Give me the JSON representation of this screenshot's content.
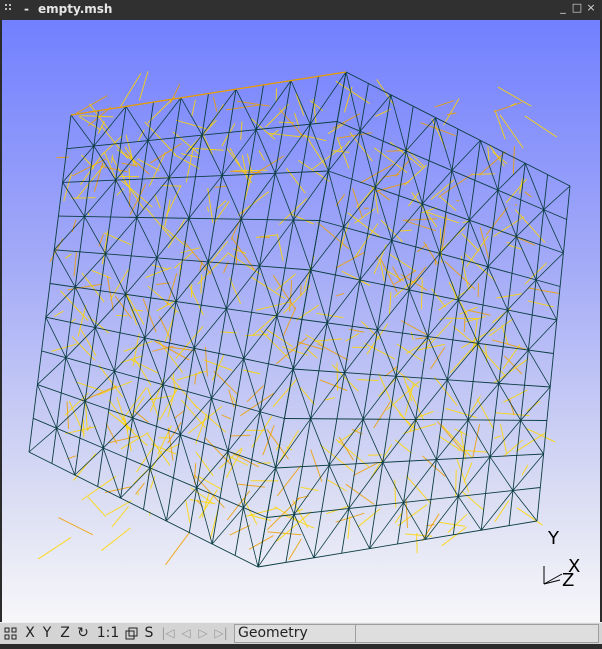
{
  "window": {
    "title": "empty.msh",
    "minimize": "_",
    "maximize": "□",
    "close": "×"
  },
  "statusbar": {
    "buttons": [
      {
        "id": "layout",
        "label": "",
        "icon": "grid-icon"
      },
      {
        "id": "x",
        "label": "X"
      },
      {
        "id": "y",
        "label": "Y"
      },
      {
        "id": "z",
        "label": "Z"
      },
      {
        "id": "rotate",
        "label": "↻",
        "icon": "rotate-icon"
      },
      {
        "id": "scale",
        "label": "1:1"
      },
      {
        "id": "ortho",
        "label": "",
        "icon": "cube-icon"
      },
      {
        "id": "s",
        "label": "S"
      },
      {
        "id": "first",
        "label": "|◁",
        "icon": "first-icon"
      },
      {
        "id": "prev",
        "label": "◁",
        "icon": "prev-icon"
      },
      {
        "id": "play",
        "label": "▷",
        "icon": "play-icon"
      },
      {
        "id": "last",
        "label": "▷|",
        "icon": "last-icon"
      }
    ],
    "module": "Geometry",
    "message": ""
  },
  "axes": {
    "y": "Y",
    "x": "X",
    "z": "Z"
  },
  "colors": {
    "mesh_front": "#0b3d43",
    "mesh_inner": "#ffd700",
    "mesh_inner2": "#f0a000",
    "bg_top": "#7280ff",
    "bg_bottom": "#f7f7f9"
  }
}
